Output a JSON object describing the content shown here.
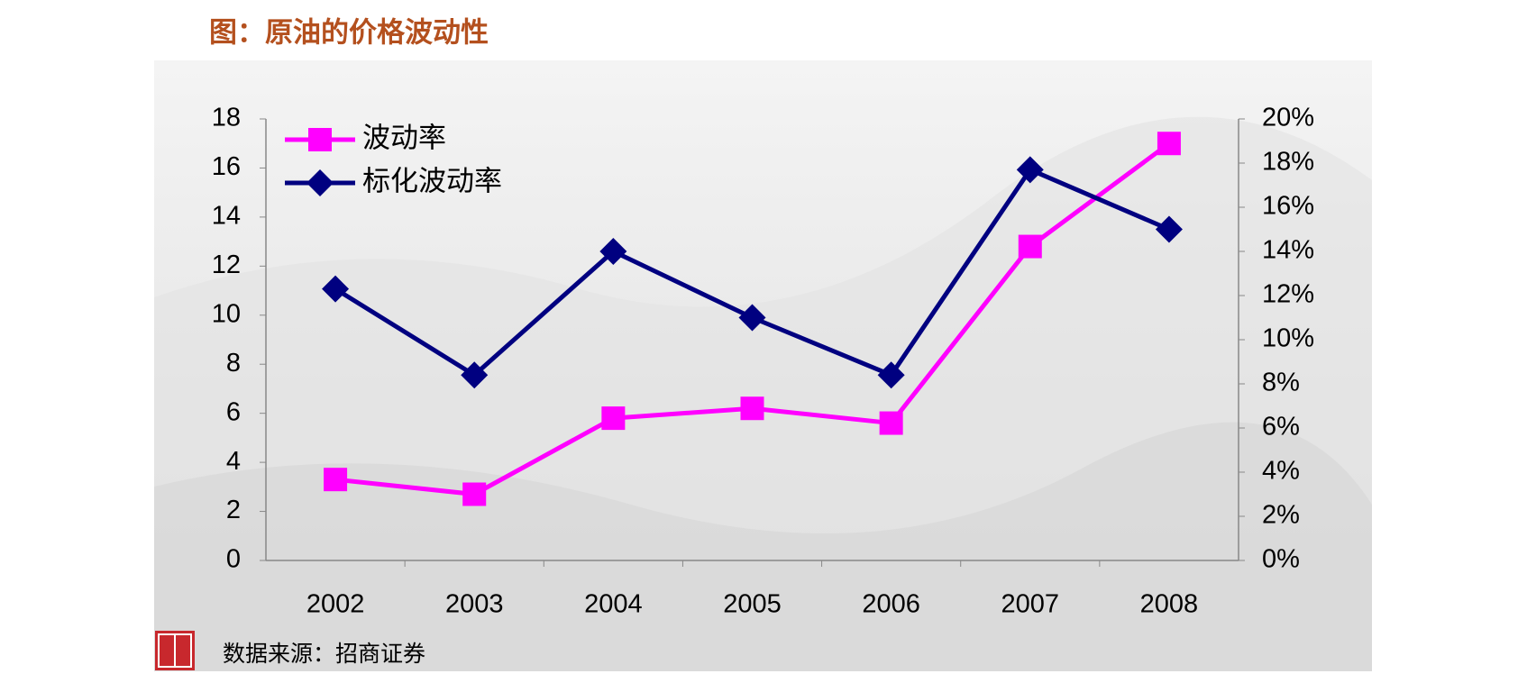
{
  "chart_data": {
    "type": "line",
    "title": "图：原油的价格波动性",
    "source": "数据来源：招商证券",
    "categories": [
      "2002",
      "2003",
      "2004",
      "2005",
      "2006",
      "2007",
      "2008"
    ],
    "series": [
      {
        "name": "波动率",
        "color": "#ff00ff",
        "marker": "square",
        "values": [
          3.3,
          2.7,
          5.8,
          6.2,
          5.6,
          12.8,
          17.0
        ]
      },
      {
        "name": "标化波动率",
        "color": "#000080",
        "marker": "diamond",
        "axis": "y2",
        "values": [
          12.3,
          8.4,
          14.0,
          11.0,
          8.4,
          17.7,
          15.0
        ]
      }
    ],
    "ylim": [
      0,
      18
    ],
    "yticks": [
      0,
      2,
      4,
      6,
      8,
      10,
      12,
      14,
      16,
      18
    ],
    "y2lim": [
      0,
      20
    ],
    "y2ticks": [
      {
        "value": 0,
        "label": "0%"
      },
      {
        "value": 2,
        "label": "2%"
      },
      {
        "value": 4,
        "label": "4%"
      },
      {
        "value": 6,
        "label": "6%"
      },
      {
        "value": 8,
        "label": "8%"
      },
      {
        "value": 10,
        "label": "10%"
      },
      {
        "value": 12,
        "label": "12%"
      },
      {
        "value": 14,
        "label": "14%"
      },
      {
        "value": 16,
        "label": "16%"
      },
      {
        "value": 18,
        "label": "18%"
      },
      {
        "value": 20,
        "label": "20%"
      }
    ],
    "legend": "top-left",
    "grid": false
  }
}
